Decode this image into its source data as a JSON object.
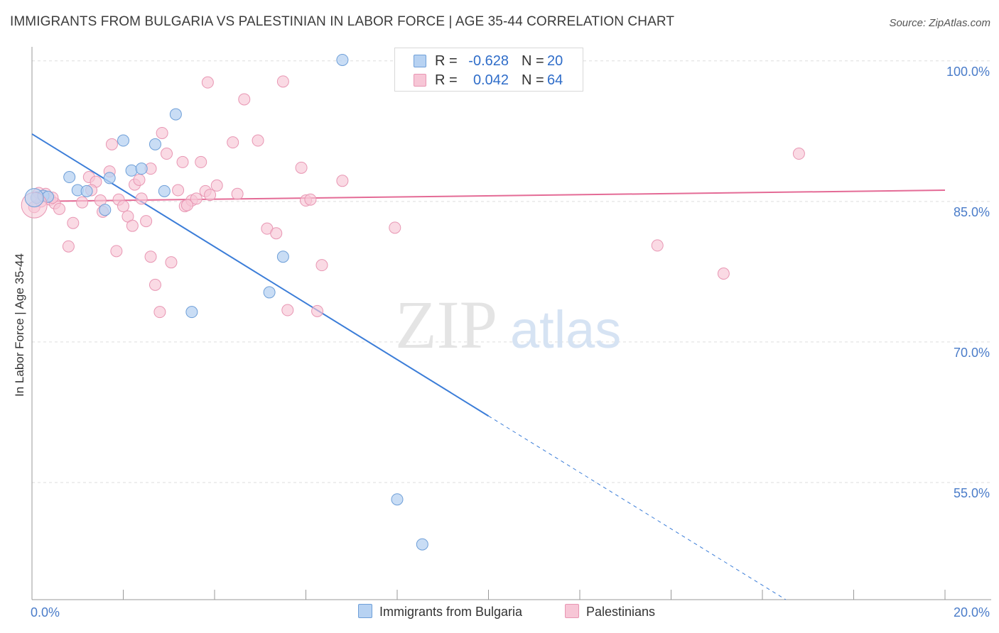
{
  "title": "IMMIGRANTS FROM BULGARIA VS PALESTINIAN IN LABOR FORCE | AGE 35-44 CORRELATION CHART",
  "source": "Source: ZipAtlas.com",
  "watermark": {
    "zip": "ZIP",
    "atlas": "atlas"
  },
  "legend_top": {
    "r_label": "R =",
    "n_label": "N =",
    "rows": [
      {
        "r": "-0.628",
        "n": "20"
      },
      {
        "r": "0.042",
        "n": "64"
      }
    ]
  },
  "colors": {
    "blue_fill": "#b7d2f2",
    "blue_stroke": "#6e9fd8",
    "blue_line": "#3b7dd8",
    "pink_fill": "#f7c6d6",
    "pink_stroke": "#e896b3",
    "pink_line": "#e46b96",
    "tick_text": "#4a7cc9",
    "grid": "#dddddd"
  },
  "chart_data": {
    "type": "scatter",
    "title": "IMMIGRANTS FROM BULGARIA VS PALESTINIAN IN LABOR FORCE | AGE 35-44 CORRELATION CHART",
    "xlabel": "",
    "ylabel": "In Labor Force | Age 35-44",
    "xlim": [
      0,
      20
    ],
    "ylim": [
      42.5,
      101.5
    ],
    "x_tick_labels": [
      "0.0%",
      "20.0%"
    ],
    "y_ticks": [
      55,
      70,
      85,
      100
    ],
    "y_tick_labels": [
      "55.0%",
      "70.0%",
      "85.0%",
      "100.0%"
    ],
    "grid": true,
    "legend_position": "bottom",
    "series": [
      {
        "name": "Immigrants from Bulgaria",
        "color": "blue",
        "r": -0.628,
        "n": 20,
        "points": [
          [
            0.1,
            85.4
          ],
          [
            0.25,
            85.6
          ],
          [
            0.35,
            85.5
          ],
          [
            0.82,
            87.6
          ],
          [
            1.0,
            86.2
          ],
          [
            1.2,
            86.1
          ],
          [
            1.7,
            87.5
          ],
          [
            2.0,
            91.5
          ],
          [
            2.18,
            88.3
          ],
          [
            2.4,
            88.5
          ],
          [
            2.7,
            91.1
          ],
          [
            2.9,
            86.1
          ],
          [
            3.15,
            94.3
          ],
          [
            3.5,
            73.2
          ],
          [
            5.2,
            75.3
          ],
          [
            5.5,
            79.1
          ],
          [
            6.8,
            100.1
          ],
          [
            8.0,
            53.2
          ],
          [
            8.55,
            48.4
          ],
          [
            1.6,
            84.1
          ]
        ],
        "trend": {
          "x0": 0.0,
          "y0": 92.2,
          "x1": 10.0,
          "y1": 62.1,
          "dash_to_x": 20.0,
          "dash_to_y": 32.0
        }
      },
      {
        "name": "Palestinians",
        "color": "pink",
        "r": 0.042,
        "n": 64,
        "points": [
          [
            0.05,
            84.4
          ],
          [
            0.2,
            85.0
          ],
          [
            0.4,
            85.2
          ],
          [
            0.5,
            84.8
          ],
          [
            0.6,
            84.2
          ],
          [
            0.8,
            80.2
          ],
          [
            0.9,
            82.7
          ],
          [
            1.1,
            84.9
          ],
          [
            1.25,
            87.6
          ],
          [
            1.4,
            87.1
          ],
          [
            1.55,
            83.9
          ],
          [
            1.7,
            88.2
          ],
          [
            1.75,
            91.1
          ],
          [
            1.85,
            79.7
          ],
          [
            1.9,
            85.2
          ],
          [
            2.0,
            84.5
          ],
          [
            2.1,
            83.4
          ],
          [
            2.2,
            82.4
          ],
          [
            2.25,
            86.8
          ],
          [
            2.35,
            87.3
          ],
          [
            2.5,
            82.9
          ],
          [
            2.6,
            88.5
          ],
          [
            2.6,
            79.1
          ],
          [
            2.7,
            76.1
          ],
          [
            2.8,
            73.2
          ],
          [
            2.85,
            92.3
          ],
          [
            2.95,
            90.1
          ],
          [
            3.05,
            78.5
          ],
          [
            3.2,
            86.2
          ],
          [
            3.3,
            89.2
          ],
          [
            3.35,
            84.5
          ],
          [
            3.5,
            85.1
          ],
          [
            3.6,
            85.3
          ],
          [
            3.7,
            89.2
          ],
          [
            3.8,
            86.1
          ],
          [
            3.85,
            97.7
          ],
          [
            3.9,
            85.7
          ],
          [
            4.05,
            86.7
          ],
          [
            4.4,
            91.3
          ],
          [
            4.5,
            85.8
          ],
          [
            4.65,
            95.9
          ],
          [
            4.95,
            91.5
          ],
          [
            5.15,
            82.1
          ],
          [
            5.35,
            81.6
          ],
          [
            5.5,
            97.8
          ],
          [
            5.6,
            73.4
          ],
          [
            5.9,
            88.6
          ],
          [
            6.0,
            85.1
          ],
          [
            6.1,
            85.2
          ],
          [
            6.25,
            73.3
          ],
          [
            6.35,
            78.2
          ],
          [
            6.8,
            87.2
          ],
          [
            7.95,
            82.2
          ],
          [
            11.4,
            100.0
          ],
          [
            13.7,
            80.3
          ],
          [
            15.15,
            77.3
          ],
          [
            16.8,
            90.1
          ],
          [
            0.3,
            85.8
          ],
          [
            0.45,
            85.4
          ],
          [
            0.15,
            85.9
          ],
          [
            1.3,
            86.2
          ],
          [
            1.5,
            85.1
          ],
          [
            2.4,
            85.3
          ],
          [
            3.4,
            84.6
          ]
        ],
        "trend": {
          "x0": 0.0,
          "y0": 85.0,
          "x1": 20.0,
          "y1": 86.2
        }
      }
    ]
  }
}
